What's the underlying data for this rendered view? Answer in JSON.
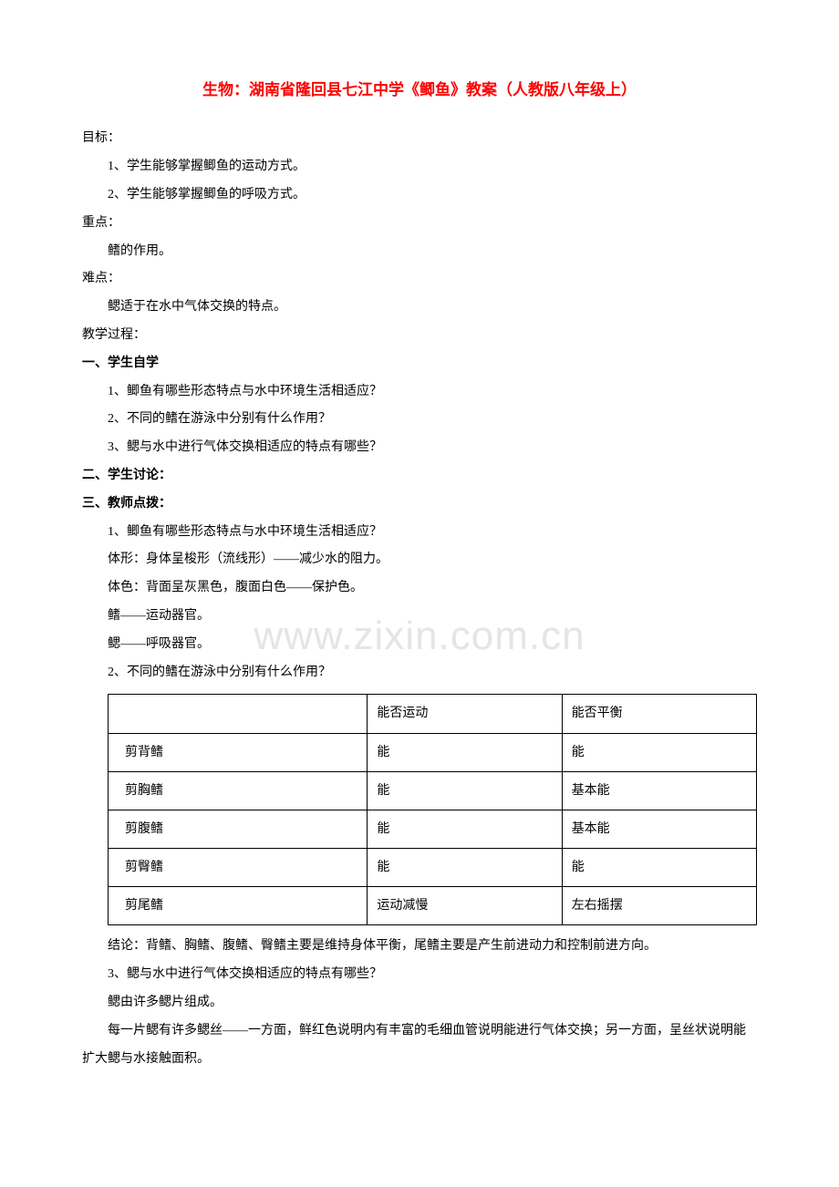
{
  "title": "生物：湖南省隆回县七江中学《鲫鱼》教案（人教版八年级上）",
  "watermark": "www.zixin.com.cn",
  "sections": {
    "goals": {
      "label": "目标：",
      "items": [
        "1、学生能够掌握鲫鱼的运动方式。",
        "2、学生能够掌握鲫鱼的呼吸方式。"
      ]
    },
    "emphasis": {
      "label": "重点：",
      "content": "鳍的作用。"
    },
    "difficulty": {
      "label": "难点：",
      "content": "鳃适于在水中气体交换的特点。"
    },
    "process": {
      "label": "教学过程："
    },
    "part1": {
      "label": "一、学生自学",
      "items": [
        "1、鲫鱼有哪些形态特点与水中环境生活相适应？",
        "2、不同的鳍在游泳中分别有什么作用？",
        "3、鳃与水中进行气体交换相适应的特点有哪些？"
      ]
    },
    "part2": {
      "label": "二、学生讨论："
    },
    "part3": {
      "label": "三、教师点拨：",
      "q1": {
        "question": "1、鲫鱼有哪些形态特点与水中环境生活相适应？",
        "answers": [
          "体形：身体呈梭形（流线形）——减少水的阻力。",
          "体色：背面呈灰黑色，腹面白色——保护色。",
          "鳍——运动器官。",
          "鳃——呼吸器官。"
        ]
      },
      "q2": {
        "question": "2、不同的鳍在游泳中分别有什么作用？",
        "conclusion": "结论：背鳍、胸鳍、腹鳍、臀鳍主要是维持身体平衡，尾鳍主要是产生前进动力和控制前进方向。"
      },
      "q3": {
        "question": "3、鳃与水中进行气体交换相适应的特点有哪些？",
        "answers": [
          "鳃由许多鳃片组成。",
          "每一片鳃有许多鳃丝——一方面，鲜红色说明内有丰富的毛细血管说明能进行气体交换；另一方面，呈丝状说明能扩大鳃与水接触面积。"
        ]
      }
    }
  },
  "table": {
    "headers": [
      "",
      "能否运动",
      "能否平衡"
    ],
    "rows": [
      [
        "剪背鳍",
        "能",
        "能"
      ],
      [
        "剪胸鳍",
        "能",
        "基本能"
      ],
      [
        "剪腹鳍",
        "能",
        "基本能"
      ],
      [
        "剪臀鳍",
        "能",
        "能"
      ],
      [
        "剪尾鳍",
        "运动减慢",
        "左右摇摆"
      ]
    ],
    "border_color": "#000000"
  },
  "colors": {
    "title_color": "#ff0000",
    "text_color": "#000000",
    "background": "#ffffff",
    "watermark_color": "#e5e5e5"
  },
  "typography": {
    "body_fontsize": 14,
    "title_fontsize": 17,
    "watermark_fontsize": 44,
    "line_height": 2.2
  }
}
